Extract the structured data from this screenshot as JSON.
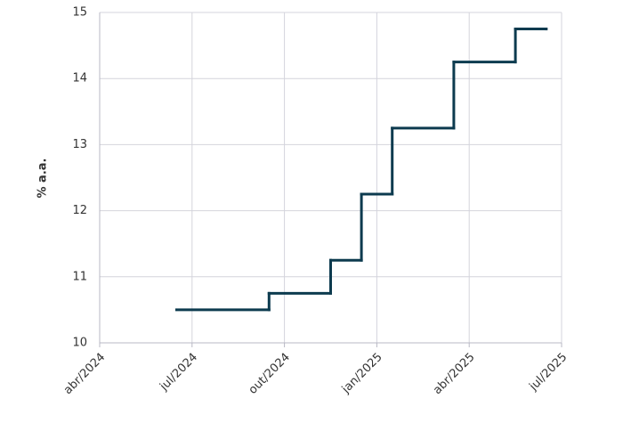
{
  "chart_data": {
    "type": "step",
    "ylabel": "% a.a.",
    "x": [
      "2024-06",
      "2024-09",
      "2024-11",
      "2024-12",
      "2025-01",
      "2025-03",
      "2025-05",
      "2025-06"
    ],
    "series": [
      {
        "color": "#0d3b4f",
        "values": [
          10.5,
          10.75,
          11.25,
          12.25,
          13.25,
          14.25,
          14.75,
          14.75
        ]
      }
    ],
    "xlim": [
      "2024-04",
      "2025-07"
    ],
    "xticks": [
      {
        "value": "2024-04",
        "label": "abr/2024"
      },
      {
        "value": "2024-07",
        "label": "jul/2024"
      },
      {
        "value": "2024-10",
        "label": "out/2024"
      },
      {
        "value": "2025-01",
        "label": "jan/2025"
      },
      {
        "value": "2025-04",
        "label": "abr/2025"
      },
      {
        "value": "2025-07",
        "label": "jul/2025"
      }
    ],
    "ylim": [
      10,
      15
    ],
    "yticks": [
      10,
      11,
      12,
      13,
      14,
      15
    ],
    "grid": true
  }
}
